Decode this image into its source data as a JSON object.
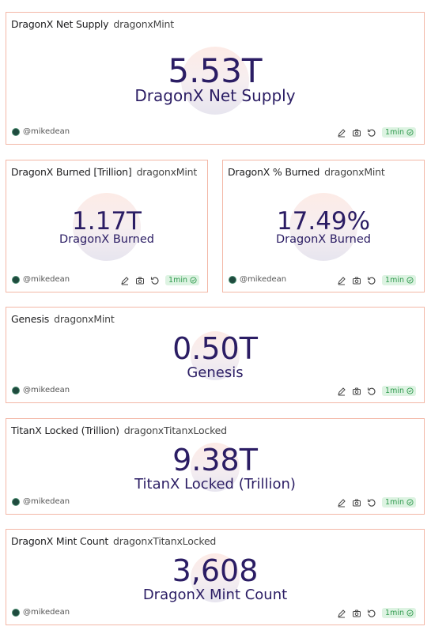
{
  "author": "@mikedean",
  "refresh_label": "1min",
  "icons": [
    "edit-icon",
    "camera-icon",
    "refresh-icon",
    "check-circle-icon"
  ],
  "colors": {
    "accent_text": "#2b1d64",
    "card_border": "#f3b7a6",
    "badge_bg": "#ddf3e2",
    "badge_text": "#2f9a4d"
  },
  "cards": [
    {
      "title": "DragonX Net Supply",
      "query": "dragonxMint",
      "value": "5.53T",
      "label": "DragonX Net Supply"
    },
    {
      "title": "DragonX Burned [Trillion]",
      "query": "dragonxMint",
      "value": "1.17T",
      "label": "DragonX Burned"
    },
    {
      "title": "DragonX % Burned",
      "query": "dragonxMint",
      "value": "17.49%",
      "label": "DragonX Burned"
    },
    {
      "title": "Genesis",
      "query": "dragonxMint",
      "value": "0.50T",
      "label": "Genesis"
    },
    {
      "title": "TitanX Locked (Trillion)",
      "query": "dragonxTitanxLocked",
      "value": "9.38T",
      "label": "TitanX Locked (Trillion)"
    },
    {
      "title": "DragonX Mint Count",
      "query": "dragonxTitanxLocked",
      "value": "3,608",
      "label": "DragonX Mint Count"
    }
  ]
}
